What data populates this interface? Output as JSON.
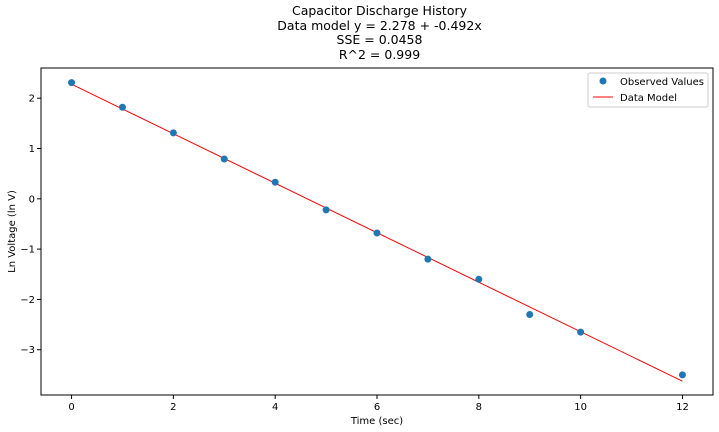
{
  "chart_data": {
    "type": "scatter",
    "title_lines": [
      "Capacitor Discharge History",
      "Data model y = 2.278 + -0.492x",
      "SSE = 0.0458",
      "R^2 = 0.999"
    ],
    "xlabel": "Time (sec)",
    "ylabel": "Ln Voltage (ln V)",
    "xlim": [
      -0.6,
      12.6
    ],
    "ylim": [
      -3.9,
      2.6
    ],
    "xticks": [
      0,
      2,
      4,
      6,
      8,
      10,
      12
    ],
    "yticks": [
      -3,
      -2,
      -1,
      0,
      1,
      2
    ],
    "grid": false,
    "legend_position": "top-right",
    "series": [
      {
        "name": "Observed Values",
        "kind": "scatter",
        "color": "#1f77b4",
        "x": [
          0,
          1,
          2,
          3,
          4,
          5,
          6,
          7,
          8,
          9,
          10,
          12
        ],
        "y": [
          2.31,
          1.82,
          1.31,
          0.79,
          0.33,
          -0.22,
          -0.68,
          -1.2,
          -1.6,
          -2.3,
          -2.65,
          -3.5
        ]
      },
      {
        "name": "Data Model",
        "kind": "line",
        "color": "#ff0000",
        "intercept": 2.278,
        "slope": -0.492,
        "x": [
          0,
          12
        ],
        "y": [
          2.278,
          -3.626
        ]
      }
    ]
  }
}
